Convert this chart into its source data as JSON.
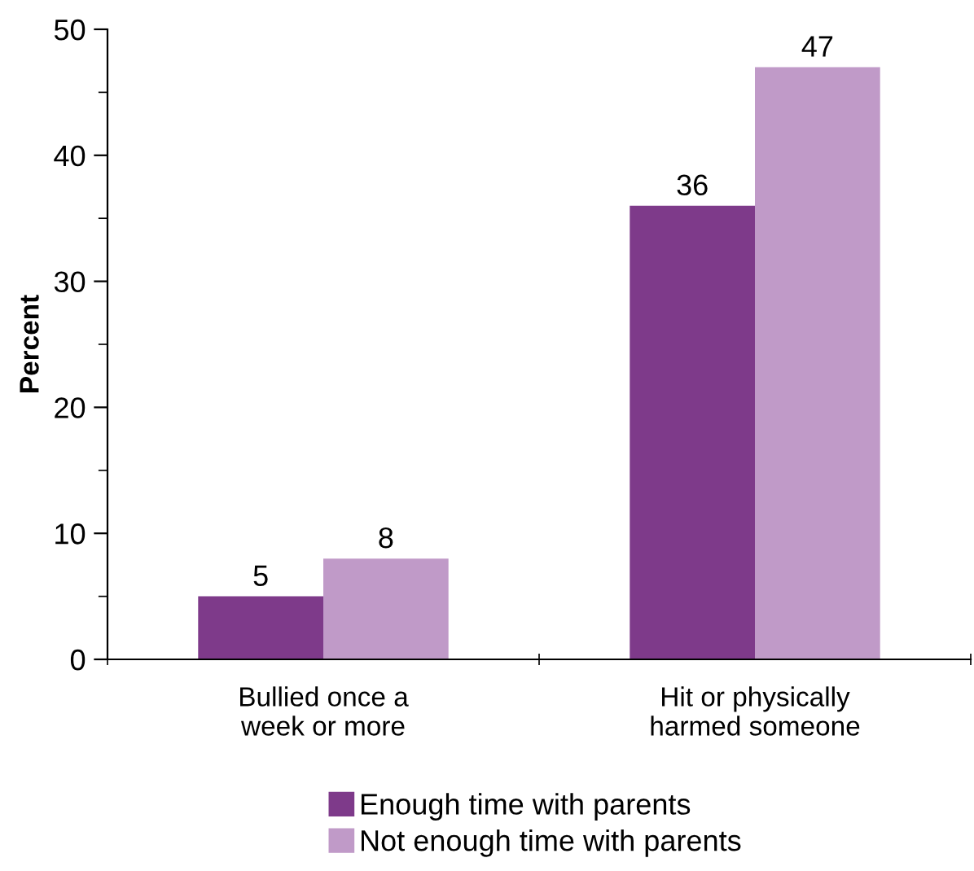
{
  "chart_data": {
    "type": "bar",
    "ylabel": "Percent",
    "categories": [
      "Bullied once a\nweek or more",
      "Hit or physically\nharmed someone"
    ],
    "series": [
      {
        "name": "Enough time with parents",
        "color": "#7e3a8a",
        "values": [
          5,
          36
        ]
      },
      {
        "name": "Not enough time with parents",
        "color": "#c09ac8",
        "values": [
          8,
          47
        ]
      }
    ],
    "ylim": [
      0,
      50
    ],
    "yticks": [
      0,
      {
        "value": 5,
        "label": null
      },
      10,
      {
        "value": 15,
        "label": null
      },
      20,
      {
        "value": 25,
        "label": null
      },
      30,
      {
        "value": 35,
        "label": null
      },
      40,
      {
        "value": 45,
        "label": null
      },
      50
    ],
    "data_labels": true,
    "legend": "bottom",
    "grid": false
  }
}
